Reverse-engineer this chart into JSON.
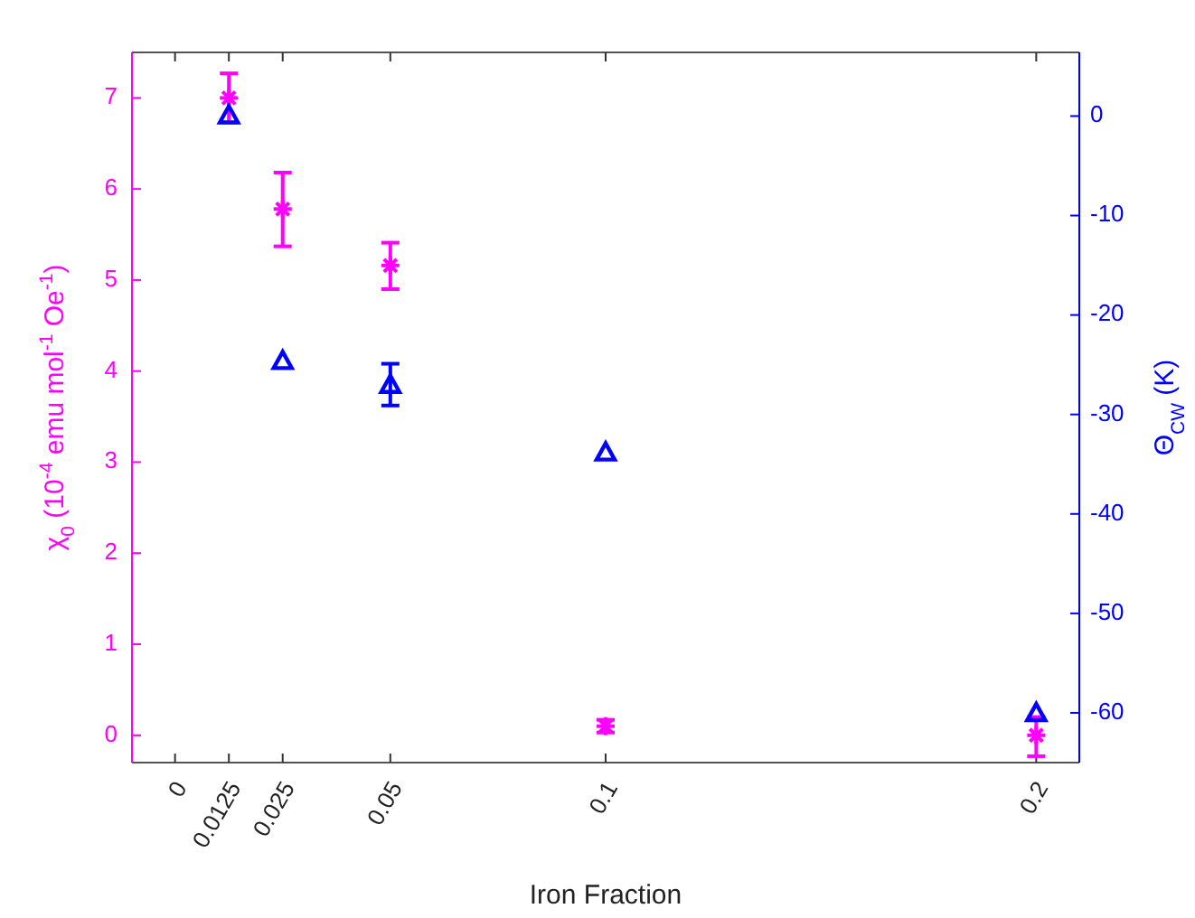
{
  "chart_data": {
    "type": "scatter",
    "xlabel": "Iron Fraction",
    "ylabel": "χ$_{0}$ (10$^{-4}$ emu mol$^{-1}$ Oe$^{-1}$)",
    "y2label": "Θ$_{CW}$ (K)",
    "x": [
      0.0125,
      0.025,
      0.05,
      0.1,
      0.2
    ],
    "xlim": [
      -0.01,
      0.21
    ],
    "xticks": [
      0,
      0.0125,
      0.025,
      0.05,
      0.1,
      0.2
    ],
    "ylim": [
      -0.3,
      7.5
    ],
    "yticks": [
      0,
      1,
      2,
      3,
      4,
      5,
      6,
      7
    ],
    "y2lim": [
      -65,
      6.4
    ],
    "y2ticks": [
      0,
      -10,
      -20,
      -30,
      -40,
      -50,
      -60
    ],
    "grid": false,
    "series": [
      {
        "color": "#ff00ff",
        "marker": "cross",
        "values": [
          7.0,
          5.78,
          5.16,
          0.1,
          0.0
        ],
        "errors": [
          [
            6.73,
            7.27
          ],
          [
            5.37,
            6.18
          ],
          [
            4.9,
            5.41
          ],
          [
            0.03,
            0.17
          ],
          [
            -0.23,
            0.2
          ]
        ]
      },
      {
        "color": "#0000ff",
        "marker": "triangle",
        "axis": "y2",
        "values": [
          0,
          -24.7,
          -27.1,
          -33.9,
          -60.1
        ],
        "errors": [
          null,
          null,
          [
            -29.1,
            -24.9
          ],
          null,
          null
        ]
      }
    ]
  }
}
